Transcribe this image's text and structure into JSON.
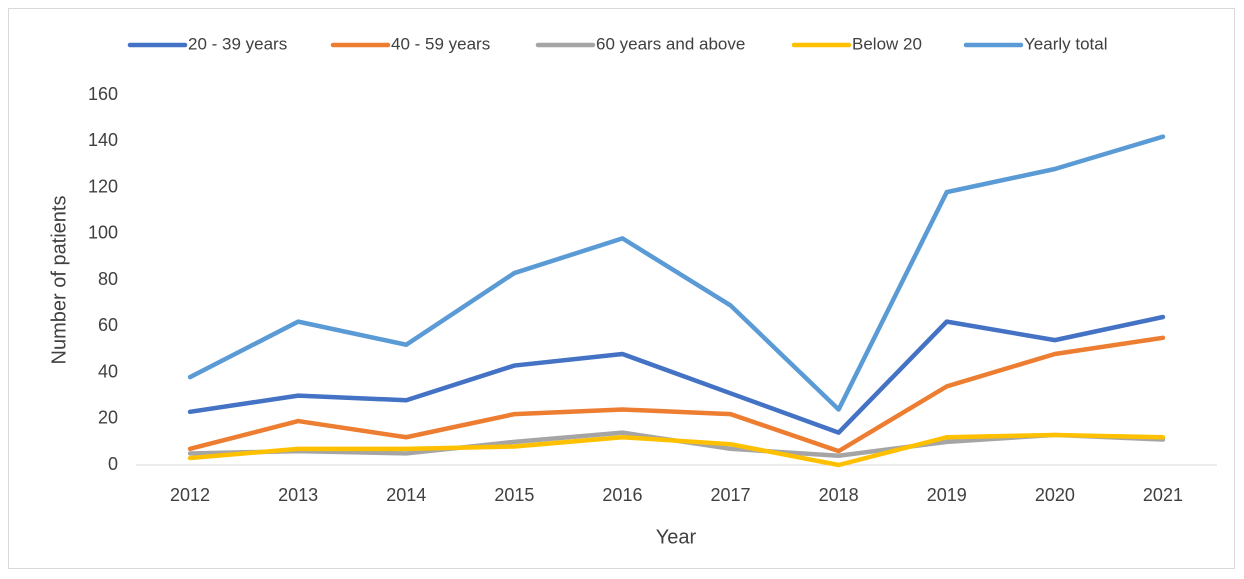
{
  "chart_data": {
    "type": "line",
    "x_label": "Year",
    "y_label": "Number of patients",
    "categories": [
      "2012",
      "2013",
      "2014",
      "2015",
      "2016",
      "2017",
      "2018",
      "2019",
      "2020",
      "2021"
    ],
    "series": [
      {
        "name": "20 - 39 years",
        "color": "#4472c4",
        "values": [
          23,
          30,
          28,
          43,
          48,
          31,
          14,
          62,
          54,
          64
        ]
      },
      {
        "name": "40 - 59 years",
        "color": "#ed7d31",
        "values": [
          7,
          19,
          12,
          22,
          24,
          22,
          6,
          34,
          48,
          55
        ]
      },
      {
        "name": "60 years and above",
        "color": "#a5a5a5",
        "values": [
          5,
          6,
          5,
          10,
          14,
          7,
          4,
          10,
          13,
          11
        ]
      },
      {
        "name": "Below 20",
        "color": "#ffc000",
        "values": [
          3,
          7,
          7,
          8,
          12,
          9,
          0,
          12,
          13,
          12
        ]
      },
      {
        "name": "Yearly total",
        "color": "#5b9bd5",
        "values": [
          38,
          62,
          52,
          83,
          98,
          69,
          24,
          118,
          128,
          142
        ]
      }
    ],
    "ylim": [
      0,
      160
    ],
    "yticks": [
      0,
      20,
      40,
      60,
      80,
      100,
      120,
      140,
      160
    ],
    "grid": false,
    "legend": "top"
  }
}
